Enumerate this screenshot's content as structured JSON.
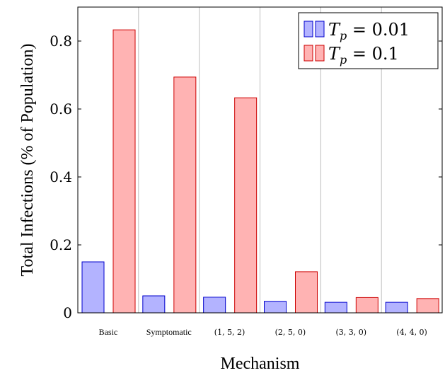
{
  "chart_data": {
    "type": "bar",
    "title": "",
    "xlabel": "Mechanism",
    "ylabel": "Total Infections (% of Population)",
    "categories": [
      "Basic",
      "Symptomatic",
      "(1, 5, 2)",
      "(2, 5, 0)",
      "(3, 3, 0)",
      "(4, 4, 0)"
    ],
    "series": [
      {
        "name": "T_p = 0.01",
        "label_main": "T",
        "label_sub": "p",
        "label_rest": " = 0.01",
        "color": "#b3b3ff",
        "stroke": "#0000cc",
        "values": [
          0.15,
          0.05,
          0.046,
          0.034,
          0.031,
          0.031
        ]
      },
      {
        "name": "T_p = 0.1",
        "label_main": "T",
        "label_sub": "p",
        "label_rest": " = 0.1",
        "color": "#ffb3b3",
        "stroke": "#cc0000",
        "values": [
          0.833,
          0.694,
          0.633,
          0.121,
          0.045,
          0.042
        ]
      }
    ],
    "ylim": [
      0,
      0.9
    ],
    "yticks": [
      "0",
      "0.2",
      "0.4",
      "0.6",
      "0.8"
    ],
    "ytick_values": [
      0,
      0.2,
      0.4,
      0.6,
      0.8
    ],
    "grid": "vertical separators",
    "legend_position": "top-right"
  }
}
